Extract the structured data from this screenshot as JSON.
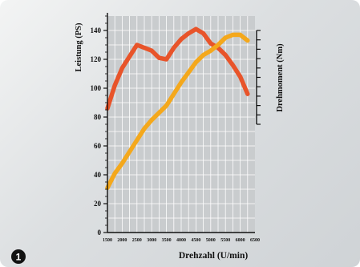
{
  "badge": "1",
  "colors": {
    "power": "#e8542a",
    "torque": "#f4a81c",
    "plot_background": "#c9ccce",
    "grid": "#ffffff"
  },
  "chart_data": {
    "type": "line",
    "xlabel": "Drehzahl (U/min)",
    "ylabel": "Leistung (PS)",
    "y2label": "Drehmoment (Nm)",
    "xlim": [
      1500,
      6500
    ],
    "ylim": [
      0,
      150
    ],
    "x_ticks": [
      "1500",
      "2000",
      "2500",
      "3000",
      "3500",
      "4000",
      "4500",
      "5000",
      "5500",
      "6000",
      "6500"
    ],
    "y_ticks": [
      "0",
      "20",
      "40",
      "60",
      "80",
      "100",
      "120",
      "140"
    ],
    "y2_ticks_labeled": false,
    "grid": true,
    "series": [
      {
        "axis": "left",
        "color": "#e8542a",
        "x": [
          1500,
          1750,
          2000,
          2250,
          2500,
          2750,
          3000,
          3250,
          3500,
          3750,
          4000,
          4250,
          4500,
          4750,
          5000,
          5250,
          5500,
          5750,
          6000,
          6250
        ],
        "values": [
          86,
          102,
          114,
          122,
          130,
          128,
          126,
          121,
          120,
          128,
          134,
          138,
          141,
          138,
          131,
          128,
          123,
          116,
          108,
          96
        ]
      },
      {
        "axis": "left",
        "color": "#f4a81c",
        "x": [
          1500,
          1750,
          2000,
          2250,
          2500,
          2750,
          3000,
          3250,
          3500,
          3750,
          4000,
          4250,
          4500,
          4750,
          5000,
          5250,
          5500,
          5750,
          6000,
          6250
        ],
        "values": [
          31,
          41,
          48,
          56,
          64,
          72,
          78,
          83,
          88,
          96,
          104,
          111,
          118,
          123,
          126,
          130,
          135,
          137,
          137,
          133
        ]
      }
    ]
  }
}
